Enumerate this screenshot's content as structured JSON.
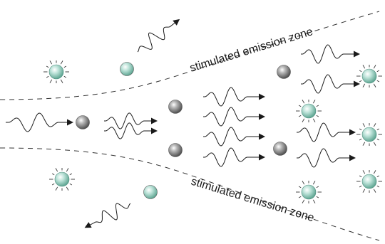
{
  "diagram": {
    "top_label": "stimulated emission zone",
    "bottom_label": "stimulated emission zone"
  }
}
